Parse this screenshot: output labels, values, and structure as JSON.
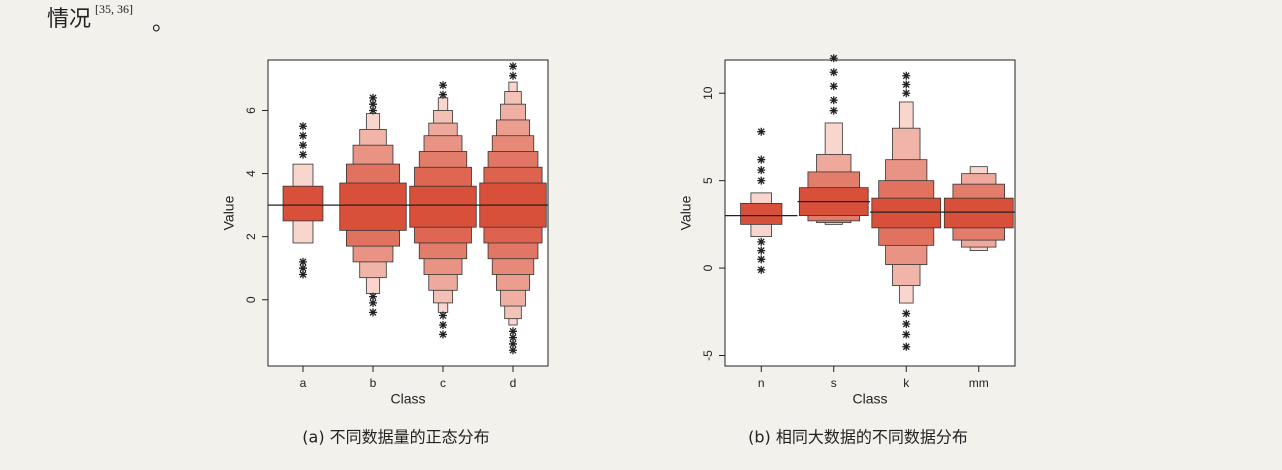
{
  "header": {
    "text": "情况",
    "citation": "[35, 36]",
    "punct": "。"
  },
  "figures": [
    {
      "caption": "(a) 不同数据量的正态分布",
      "chart_data": {
        "type": "boxen",
        "xlabel": "Class",
        "ylabel": "Value",
        "categories": [
          "a",
          "b",
          "c",
          "d"
        ],
        "ylim": [
          -2.1,
          7.6
        ],
        "yticks": [
          0,
          2,
          4,
          6
        ],
        "colors": [
          "#d9503a",
          "#f8d6cd"
        ],
        "groups": [
          {
            "median": 3,
            "boxes": [
              [
                2.5,
                3.6
              ],
              [
                1.8,
                4.3
              ]
            ],
            "outliers": [
              0.8,
              1.0,
              1.2,
              4.6,
              4.9,
              5.2,
              5.5
            ]
          },
          {
            "median": 3,
            "boxes": [
              [
                2.2,
                3.7
              ],
              [
                1.7,
                4.3
              ],
              [
                1.2,
                4.9
              ],
              [
                0.7,
                5.4
              ],
              [
                0.2,
                5.9
              ]
            ],
            "outliers": [
              -0.4,
              -0.1,
              0.1,
              6.0,
              6.2,
              6.4
            ]
          },
          {
            "median": 3,
            "boxes": [
              [
                2.3,
                3.6
              ],
              [
                1.8,
                4.2
              ],
              [
                1.3,
                4.7
              ],
              [
                0.8,
                5.2
              ],
              [
                0.3,
                5.6
              ],
              [
                -0.1,
                6.0
              ],
              [
                -0.4,
                6.4
              ]
            ],
            "outliers": [
              -1.1,
              -0.8,
              -0.5,
              6.5,
              6.8
            ]
          },
          {
            "median": 3,
            "boxes": [
              [
                2.3,
                3.7
              ],
              [
                1.8,
                4.2
              ],
              [
                1.3,
                4.7
              ],
              [
                0.8,
                5.2
              ],
              [
                0.3,
                5.7
              ],
              [
                -0.2,
                6.2
              ],
              [
                -0.6,
                6.6
              ],
              [
                -0.8,
                6.9
              ]
            ],
            "outliers": [
              -1.6,
              -1.4,
              -1.2,
              -1.0,
              7.1,
              7.4
            ]
          }
        ]
      }
    },
    {
      "caption": "(b) 相同大数据的不同数据分布",
      "chart_data": {
        "type": "boxen",
        "xlabel": "Class",
        "ylabel": "Value",
        "categories": [
          "n",
          "s",
          "k",
          "mm"
        ],
        "ylim": [
          -5.6,
          11.9
        ],
        "yticks": [
          -5,
          0,
          5,
          10
        ],
        "colors": [
          "#d9503a",
          "#f8d6cd"
        ],
        "groups": [
          {
            "median": 3,
            "boxes": [
              [
                2.5,
                3.7
              ],
              [
                1.8,
                4.3
              ]
            ],
            "outliers": [
              -0.1,
              0.5,
              1.0,
              1.5,
              5.0,
              5.6,
              6.2,
              7.8
            ]
          },
          {
            "median": 3.8,
            "boxes": [
              [
                3.0,
                4.6
              ],
              [
                2.7,
                5.5
              ],
              [
                2.6,
                6.5
              ],
              [
                2.5,
                8.3
              ]
            ],
            "outliers": [
              9.0,
              9.6,
              10.4,
              11.2,
              12.0
            ]
          },
          {
            "median": 3.2,
            "boxes": [
              [
                2.3,
                4.0
              ],
              [
                1.3,
                5.0
              ],
              [
                0.2,
                6.2
              ],
              [
                -1.0,
                8.0
              ],
              [
                -2.0,
                9.5
              ]
            ],
            "outliers": [
              -4.5,
              -3.8,
              -3.2,
              -2.6,
              10.0,
              10.5,
              11.0
            ]
          },
          {
            "median": 3.2,
            "boxes": [
              [
                2.3,
                4.0
              ],
              [
                1.6,
                4.8
              ],
              [
                1.2,
                5.4
              ],
              [
                1.0,
                5.8
              ]
            ],
            "outliers": []
          }
        ]
      }
    }
  ]
}
